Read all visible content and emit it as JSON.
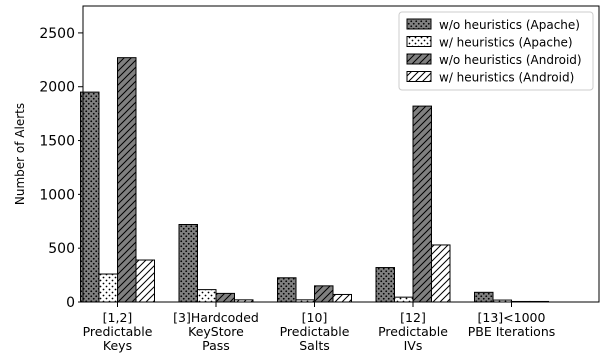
{
  "chart_data": {
    "type": "bar",
    "title": "",
    "xlabel": "",
    "ylabel": "Number of Alerts",
    "ylim": [
      0,
      2750
    ],
    "yticks": [
      0,
      500,
      1000,
      1500,
      2000,
      2500
    ],
    "grid": false,
    "legend_position": "top-right",
    "categories": [
      [
        "[1,2]",
        "Predictable",
        "Keys"
      ],
      [
        "[3]Hardcoded",
        "KeyStore",
        "Pass"
      ],
      [
        "[10]",
        "Predictable",
        "Salts"
      ],
      [
        "[12]",
        "Predictable",
        "IVs"
      ],
      [
        "[13]<1000",
        "PBE Iterations"
      ]
    ],
    "series": [
      {
        "name": "w/o heuristics (Apache)",
        "values": [
          1950,
          720,
          225,
          320,
          90
        ],
        "fill": "#808080",
        "pattern": "dots-dense"
      },
      {
        "name": "w/ heuristics (Apache)",
        "values": [
          260,
          115,
          20,
          45,
          18
        ],
        "fill": "#ffffff",
        "pattern": "dots-sparse"
      },
      {
        "name": "w/o heuristics (Android)",
        "values": [
          2270,
          80,
          150,
          1820,
          5
        ],
        "fill": "#808080",
        "pattern": "hatch"
      },
      {
        "name": "w/ heuristics (Android)",
        "values": [
          390,
          20,
          70,
          530,
          5
        ],
        "fill": "#ffffff",
        "pattern": "hatch"
      }
    ]
  }
}
